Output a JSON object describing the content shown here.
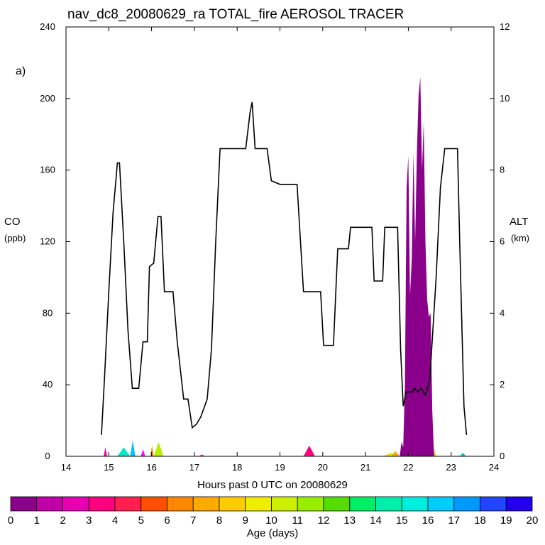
{
  "chart_data": {
    "type": "area",
    "title": "nav_dc8_20080629_ra TOTAL_fire AEROSOL TRACER",
    "panel_label": "a)",
    "xlabel": "Hours past 0 UTC on 20080629",
    "ylabel_left": "CO",
    "ylabel_left_unit": "(ppb)",
    "ylabel_right": "ALT",
    "ylabel_right_unit": "(km)",
    "xlim": [
      14,
      24
    ],
    "ylim_left": [
      0,
      240
    ],
    "ylim_right": [
      0,
      12
    ],
    "x_ticks": [
      "14",
      "15",
      "16",
      "17",
      "18",
      "19",
      "20",
      "21",
      "22",
      "23",
      "24"
    ],
    "y_left_ticks": [
      "0",
      "40",
      "80",
      "120",
      "160",
      "200",
      "240"
    ],
    "y_right_ticks": [
      "0",
      "2",
      "4",
      "6",
      "8",
      "10",
      "12"
    ],
    "altitude_km": [
      [
        14.83,
        0.6
      ],
      [
        14.9,
        2.2
      ],
      [
        15.0,
        4.6
      ],
      [
        15.1,
        6.8
      ],
      [
        15.2,
        8.2
      ],
      [
        15.25,
        8.2
      ],
      [
        15.35,
        6.0
      ],
      [
        15.45,
        3.5
      ],
      [
        15.55,
        1.9
      ],
      [
        15.7,
        1.9
      ],
      [
        15.8,
        3.2
      ],
      [
        15.9,
        3.2
      ],
      [
        15.95,
        5.3
      ],
      [
        16.05,
        5.4
      ],
      [
        16.15,
        6.7
      ],
      [
        16.22,
        6.7
      ],
      [
        16.3,
        4.6
      ],
      [
        16.5,
        4.6
      ],
      [
        16.6,
        3.2
      ],
      [
        16.75,
        1.6
      ],
      [
        16.85,
        1.6
      ],
      [
        16.95,
        0.8
      ],
      [
        17.05,
        0.9
      ],
      [
        17.15,
        1.1
      ],
      [
        17.3,
        1.6
      ],
      [
        17.4,
        3.0
      ],
      [
        17.5,
        6.0
      ],
      [
        17.6,
        8.6
      ],
      [
        18.2,
        8.6
      ],
      [
        18.3,
        9.6
      ],
      [
        18.35,
        9.9
      ],
      [
        18.42,
        8.6
      ],
      [
        18.7,
        8.6
      ],
      [
        18.8,
        7.7
      ],
      [
        19.0,
        7.6
      ],
      [
        19.4,
        7.6
      ],
      [
        19.55,
        4.6
      ],
      [
        19.95,
        4.6
      ],
      [
        20.02,
        3.1
      ],
      [
        20.25,
        3.1
      ],
      [
        20.35,
        5.8
      ],
      [
        20.6,
        5.8
      ],
      [
        20.65,
        6.4
      ],
      [
        21.15,
        6.4
      ],
      [
        21.2,
        4.9
      ],
      [
        21.4,
        4.9
      ],
      [
        21.45,
        6.4
      ],
      [
        21.75,
        6.4
      ],
      [
        21.82,
        3.0
      ],
      [
        21.88,
        1.4
      ],
      [
        21.95,
        1.8
      ],
      [
        22.1,
        1.8
      ],
      [
        22.15,
        1.9
      ],
      [
        22.22,
        1.8
      ],
      [
        22.3,
        1.9
      ],
      [
        22.4,
        1.7
      ],
      [
        22.5,
        2.1
      ],
      [
        22.65,
        5.0
      ],
      [
        22.75,
        7.5
      ],
      [
        22.85,
        8.6
      ],
      [
        23.15,
        8.6
      ],
      [
        23.2,
        6.0
      ],
      [
        23.3,
        1.4
      ],
      [
        23.36,
        0.6
      ]
    ],
    "tracer_co_ppb": [
      [
        21.8,
        0
      ],
      [
        21.84,
        8
      ],
      [
        21.88,
        5
      ],
      [
        21.92,
        40
      ],
      [
        21.96,
        150
      ],
      [
        22.0,
        168
      ],
      [
        22.04,
        90
      ],
      [
        22.08,
        110
      ],
      [
        22.12,
        170
      ],
      [
        22.16,
        120
      ],
      [
        22.2,
        170
      ],
      [
        22.24,
        202
      ],
      [
        22.28,
        212
      ],
      [
        22.32,
        160
      ],
      [
        22.36,
        187
      ],
      [
        22.4,
        120
      ],
      [
        22.44,
        88
      ],
      [
        22.48,
        78
      ],
      [
        22.52,
        80
      ],
      [
        22.56,
        25
      ],
      [
        22.6,
        0
      ]
    ],
    "small_tracer_patches": [
      {
        "x0": 14.88,
        "x1": 14.96,
        "peak": 5,
        "color": "#ee00aa"
      },
      {
        "x0": 15.2,
        "x1": 15.5,
        "peak": 5,
        "color": "#00e8c8"
      },
      {
        "x0": 15.5,
        "x1": 15.62,
        "peak": 9,
        "color": "#00c0ff"
      },
      {
        "x0": 15.75,
        "x1": 15.85,
        "peak": 4,
        "color": "#ff00ff"
      },
      {
        "x0": 15.97,
        "x1": 16.05,
        "peak": 6,
        "color": "#ff8800"
      },
      {
        "x0": 16.05,
        "x1": 16.28,
        "peak": 8,
        "color": "#b8ee00"
      },
      {
        "x0": 17.1,
        "x1": 17.25,
        "peak": 1,
        "color": "#ff2050"
      },
      {
        "x0": 19.55,
        "x1": 19.82,
        "peak": 6,
        "color": "#ff0080"
      },
      {
        "x0": 21.4,
        "x1": 21.78,
        "peak": 2,
        "color": "#e8e800"
      },
      {
        "x0": 21.6,
        "x1": 21.8,
        "peak": 3,
        "color": "#ffaa00"
      },
      {
        "x0": 22.55,
        "x1": 22.65,
        "peak": 4,
        "color": "#ffbb00"
      },
      {
        "x0": 23.2,
        "x1": 23.35,
        "peak": 2,
        "color": "#00d0c0"
      }
    ],
    "main_tracer_color": "#8b008b",
    "colorbar": {
      "label": "Age (days)",
      "ticks": [
        "0",
        "1",
        "2",
        "3",
        "4",
        "5",
        "6",
        "7",
        "8",
        "9",
        "10",
        "11",
        "12",
        "13",
        "14",
        "15",
        "16",
        "17",
        "18",
        "19",
        "20"
      ],
      "colors": [
        "#8b008b",
        "#c000a8",
        "#e600b4",
        "#ff0080",
        "#ff2050",
        "#ff5000",
        "#ff8800",
        "#ffaa00",
        "#ffcc00",
        "#f0ee00",
        "#ccee00",
        "#99ee00",
        "#55dd00",
        "#00ee66",
        "#00eeaa",
        "#00eedd",
        "#00ccff",
        "#0099ff",
        "#2244ff",
        "#2200ee",
        "#7722ff"
      ]
    }
  }
}
